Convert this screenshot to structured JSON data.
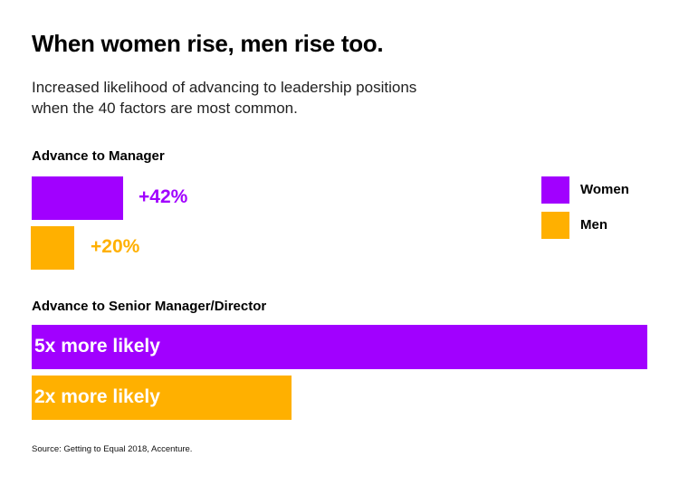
{
  "chart_data": [
    {
      "type": "bar",
      "orientation": "horizontal",
      "title": "Advance to Manager",
      "categories": [
        "Women",
        "Men"
      ],
      "values": [
        42,
        20
      ],
      "unit": "% increased likelihood",
      "data_labels": [
        "+42%",
        "+20%"
      ],
      "label_position": "outside-right",
      "colors": [
        "#a100ff",
        "#ffb000"
      ]
    },
    {
      "type": "bar",
      "orientation": "horizontal",
      "title": "Advance to Senior Manager/Director",
      "categories": [
        "Women",
        "Men"
      ],
      "values": [
        5,
        2
      ],
      "unit": "x more likely",
      "data_labels": [
        "5x more likely",
        "2x more likely"
      ],
      "label_position": "inside-left",
      "colors": [
        "#a100ff",
        "#ffb000"
      ]
    }
  ],
  "header": {
    "title": "When women rise, men rise too.",
    "subtitle": "Increased likelihood of advancing to leadership positions when the 40 factors are most common."
  },
  "legend": {
    "placement": "right",
    "items": [
      {
        "label": "Women",
        "color": "#a100ff"
      },
      {
        "label": "Men",
        "color": "#ffb000"
      }
    ]
  },
  "colors": {
    "women": "#a100ff",
    "men": "#ffb000"
  },
  "source": "Source: Getting to Equal 2018, Accenture."
}
